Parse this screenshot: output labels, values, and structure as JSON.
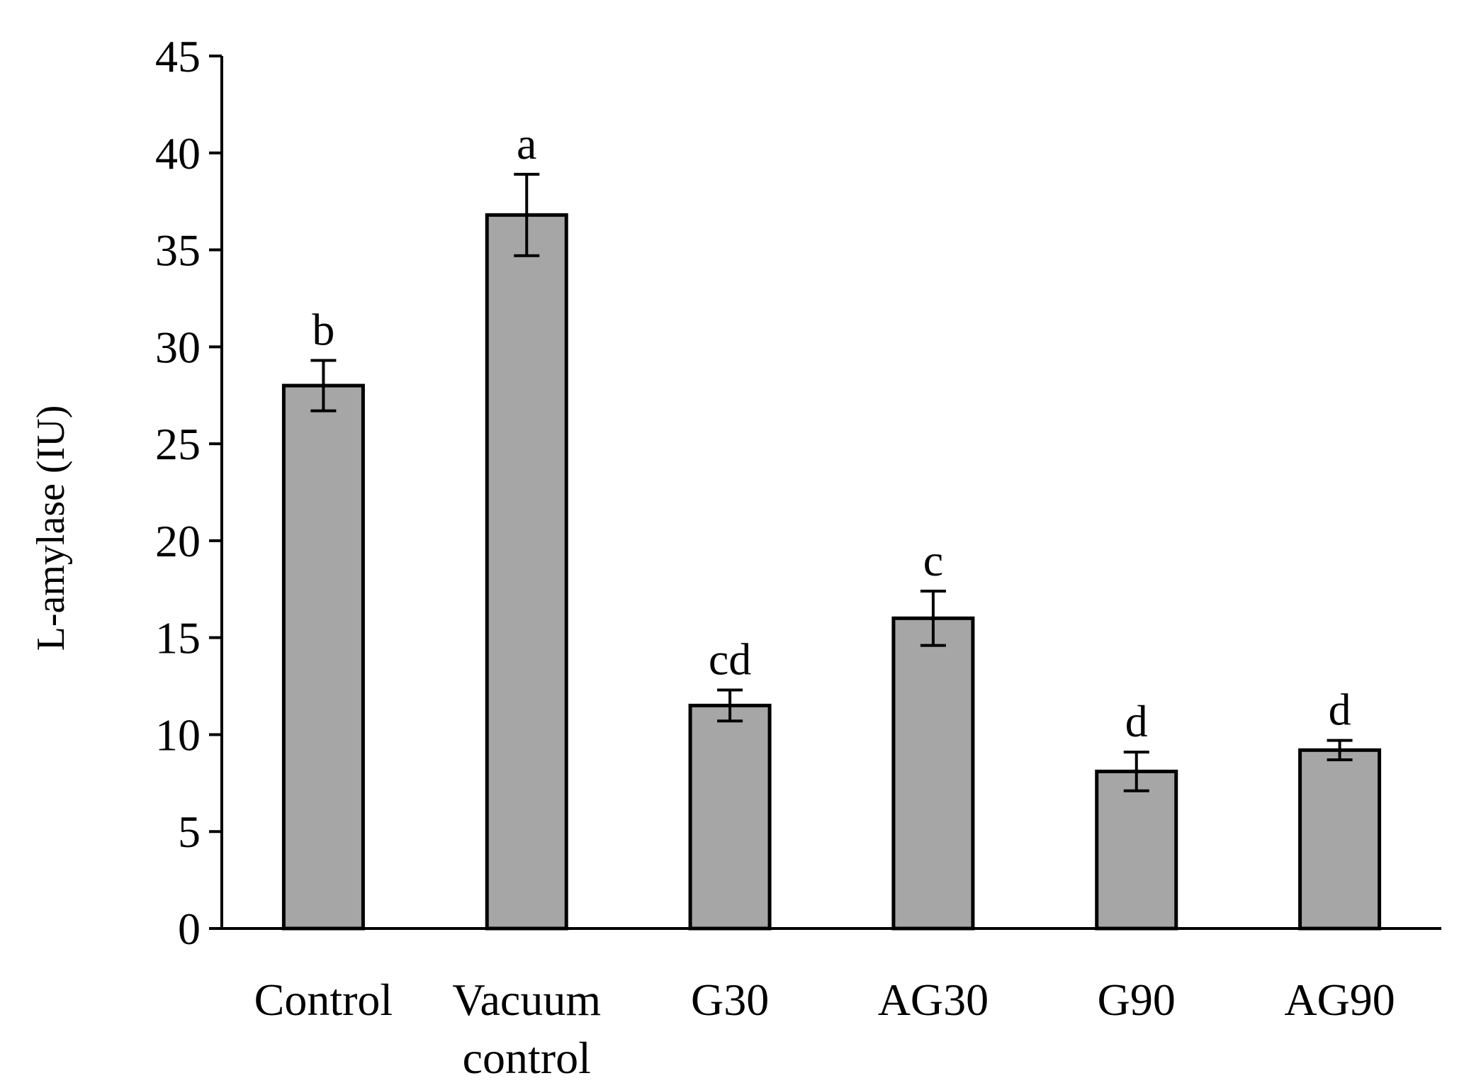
{
  "chart_data": {
    "type": "bar",
    "title": "",
    "xlabel": "",
    "ylabel": "L-amylase (IU)",
    "ylim": [
      0,
      45
    ],
    "yticks": [
      0,
      5,
      10,
      15,
      20,
      25,
      30,
      35,
      40,
      45
    ],
    "ytick_labels": [
      "0",
      "5",
      "10",
      "15",
      "20",
      "25",
      "30",
      "35",
      "40",
      "45"
    ],
    "grid": false,
    "categories": [
      [
        "Control"
      ],
      [
        "Vacuum",
        "control"
      ],
      [
        "G30"
      ],
      [
        "AG30"
      ],
      [
        "G90"
      ],
      [
        "AG90"
      ]
    ],
    "values": [
      28.0,
      36.8,
      11.5,
      16.0,
      8.1,
      9.2
    ],
    "errors": [
      1.3,
      2.1,
      0.8,
      1.4,
      1.0,
      0.5
    ],
    "significance": [
      "b",
      "a",
      "cd",
      "c",
      "d",
      "d"
    ],
    "colors": {
      "bar_fill": "#a6a6a6",
      "bar_stroke": "#000000",
      "axis": "#000000"
    }
  }
}
